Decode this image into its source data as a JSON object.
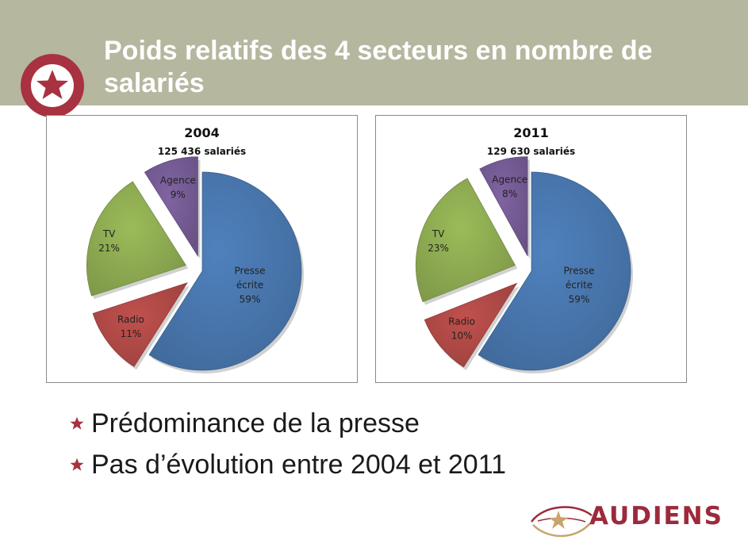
{
  "slide": {
    "title": "Poids relatifs des 4 secteurs en nombre de salariés",
    "bullets": [
      "Prédominance de la presse",
      "Pas d’évolution entre 2004 et 2011"
    ],
    "brand": "AUDIENS",
    "colors": {
      "header": "#b5b79f",
      "accent": "#a8323f",
      "brand": "#9c2a3c"
    }
  },
  "chart_data": [
    {
      "type": "pie",
      "exploded": true,
      "title": "2004",
      "subtitle": "125 436 salariés",
      "slices": [
        {
          "label": [
            "Presse",
            "écrite"
          ],
          "percent_label": "59%",
          "value": 59,
          "color": "#4f81bd"
        },
        {
          "label": [
            "Radio"
          ],
          "percent_label": "11%",
          "value": 11,
          "color": "#c0504d"
        },
        {
          "label": [
            "TV"
          ],
          "percent_label": "21%",
          "value": 21,
          "color": "#9bbb59"
        },
        {
          "label": [
            "Agence"
          ],
          "percent_label": "9%",
          "value": 9,
          "color": "#8064a2"
        }
      ]
    },
    {
      "type": "pie",
      "exploded": true,
      "title": "2011",
      "subtitle": "129 630 salariés",
      "slices": [
        {
          "label": [
            "Presse",
            "écrite"
          ],
          "percent_label": "59%",
          "value": 59,
          "color": "#4f81bd"
        },
        {
          "label": [
            "Radio"
          ],
          "percent_label": "10%",
          "value": 10,
          "color": "#c0504d"
        },
        {
          "label": [
            "TV"
          ],
          "percent_label": "23%",
          "value": 23,
          "color": "#9bbb59"
        },
        {
          "label": [
            "Agence"
          ],
          "percent_label": "8%",
          "value": 8,
          "color": "#8064a2"
        }
      ]
    }
  ]
}
